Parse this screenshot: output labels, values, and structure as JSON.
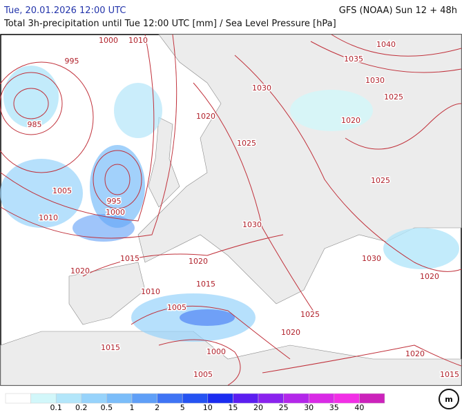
{
  "header": {
    "datetime": "Tue, 20.01.2026 12:00 UTC",
    "model": "GFS (NOAA) Sun 12 + 48h",
    "subtitle": "Total 3h-precipitation until Tue 12:00 UTC [mm] / Sea Level Pressure [hPa]"
  },
  "isobar_labels": [
    "1000",
    "1010",
    "995",
    "985",
    "1005",
    "1010",
    "995",
    "1000",
    "1015",
    "1020",
    "1020",
    "1010",
    "1015",
    "1005",
    "1000",
    "1015",
    "1005",
    "1020",
    "1025",
    "1020",
    "1015",
    "1020",
    "1030",
    "1025",
    "1020",
    "1025",
    "1030",
    "1035",
    "1040",
    "1030",
    "1025",
    "1030",
    "1020"
  ],
  "legend": [
    {
      "color": "#ffffff"
    },
    {
      "color": "#d2f7fa",
      "label": 0.1
    },
    {
      "color": "#b3e6fa",
      "label": 0.2
    },
    {
      "color": "#97d3fb",
      "label": 0.5
    },
    {
      "color": "#7bbdf9",
      "label": 1
    },
    {
      "color": "#5f9ff7",
      "label": 2
    },
    {
      "color": "#3f74f4",
      "label": 5
    },
    {
      "color": "#2553f2",
      "label": 10
    },
    {
      "color": "#1b2cf0",
      "label": 15
    },
    {
      "color": "#5b1ef0",
      "label": 20
    },
    {
      "color": "#8a23ee",
      "label": 25
    },
    {
      "color": "#b327ea",
      "label": 30
    },
    {
      "color": "#d92ae6",
      "label": 35
    },
    {
      "color": "#f22fe6",
      "label": 40
    },
    {
      "color": "#cc22bb"
    }
  ]
}
